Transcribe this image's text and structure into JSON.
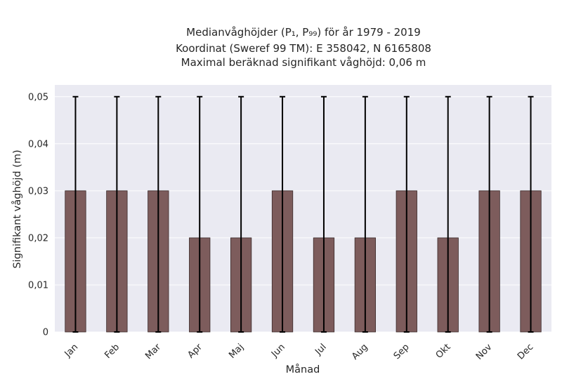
{
  "chart_data": {
    "type": "bar",
    "title_lines": [
      "Medianvåghöjder (P₁, P₉₉) för år 1979 - 2019",
      "Koordinat (Sweref 99 TM): E 358042, N 6165808",
      "Maximal beräknad signifikant våghöjd: 0,06 m"
    ],
    "xlabel": "Månad",
    "ylabel": "Signifikant våghöjd (m)",
    "categories": [
      "Jan",
      "Feb",
      "Mar",
      "Apr",
      "Maj",
      "Jun",
      "Jul",
      "Aug",
      "Sep",
      "Okt",
      "Nov",
      "Dec"
    ],
    "values": [
      0.03,
      0.03,
      0.03,
      0.02,
      0.02,
      0.03,
      0.02,
      0.02,
      0.03,
      0.02,
      0.03,
      0.03
    ],
    "error_low": [
      0,
      0,
      0,
      0,
      0,
      0,
      0,
      0,
      0,
      0,
      0,
      0
    ],
    "error_high": [
      0.05,
      0.05,
      0.05,
      0.05,
      0.05,
      0.05,
      0.05,
      0.05,
      0.05,
      0.05,
      0.05,
      0.05
    ],
    "ylim": [
      0,
      0.0525
    ],
    "yticks": [
      0,
      0.01,
      0.02,
      0.03,
      0.04,
      0.05
    ],
    "ytick_labels": [
      "0",
      "0,01",
      "0,02",
      "0,03",
      "0,04",
      "0,05"
    ],
    "grid": true,
    "colors": {
      "bar": "#7d5c5c",
      "bar_edge": "#3a2a2a",
      "error": "#000000",
      "plot_bg": "#eaeaf2",
      "grid": "#ffffff"
    }
  }
}
